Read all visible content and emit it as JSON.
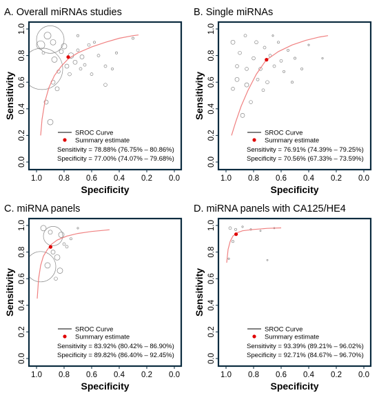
{
  "colors": {
    "frame": "#0b2b3f",
    "curve": "#f08080",
    "summary": "#e00000",
    "circle": "#888888"
  },
  "chart_data": [
    {
      "type": "scatter",
      "title": "A. Overall miRNAs studies",
      "xlabel": "Specificity",
      "ylabel": "Sensitivity",
      "xlim": [
        1.0,
        0.0
      ],
      "ylim": [
        0.0,
        1.0
      ],
      "x_ticks": [
        "1.0",
        "0.8",
        "0.6",
        "0.4",
        "0.2",
        "0.0"
      ],
      "y_ticks": [
        "0.0",
        "0.2",
        "0.4",
        "0.6",
        "0.8",
        "1.0"
      ],
      "legend": {
        "curve": "SROC Curve",
        "summary": "Summary estimate",
        "sensitivity": "Sensitivity = 78.88% (76.75% – 80.86%)",
        "specificity": "Specificity = 77.00% (74.07% – 79.68%)"
      },
      "summary": {
        "x": 0.77,
        "y": 0.789
      },
      "sroc": [
        [
          0.97,
          0.2
        ],
        [
          0.96,
          0.32
        ],
        [
          0.94,
          0.45
        ],
        [
          0.91,
          0.56
        ],
        [
          0.87,
          0.65
        ],
        [
          0.82,
          0.72
        ],
        [
          0.77,
          0.775
        ],
        [
          0.7,
          0.82
        ],
        [
          0.6,
          0.865
        ],
        [
          0.5,
          0.9
        ],
        [
          0.4,
          0.93
        ],
        [
          0.3,
          0.95
        ],
        [
          0.26,
          0.955
        ]
      ],
      "studies": [
        [
          0.9,
          0.92,
          0.1
        ],
        [
          0.96,
          0.7,
          0.15
        ],
        [
          0.97,
          0.88,
          0.03
        ],
        [
          0.92,
          0.95,
          0.025
        ],
        [
          0.88,
          0.9,
          0.02
        ],
        [
          0.82,
          0.83,
          0.015
        ],
        [
          0.8,
          0.87,
          0.02
        ],
        [
          0.78,
          0.72,
          0.015
        ],
        [
          0.75,
          0.8,
          0.02
        ],
        [
          0.72,
          0.75,
          0.015
        ],
        [
          0.7,
          0.84,
          0.01
        ],
        [
          0.67,
          0.79,
          0.015
        ],
        [
          0.65,
          0.73,
          0.01
        ],
        [
          0.62,
          0.88,
          0.01
        ],
        [
          0.6,
          0.66,
          0.01
        ],
        [
          0.55,
          0.8,
          0.01
        ],
        [
          0.5,
          0.72,
          0.01
        ],
        [
          0.5,
          0.58,
          0.012
        ],
        [
          0.45,
          0.7,
          0.008
        ],
        [
          0.42,
          0.82,
          0.008
        ],
        [
          0.9,
          0.3,
          0.02
        ],
        [
          0.85,
          0.55,
          0.015
        ],
        [
          0.93,
          0.45,
          0.015
        ],
        [
          0.88,
          0.6,
          0.015
        ],
        [
          0.84,
          0.68,
          0.012
        ],
        [
          0.7,
          0.95,
          0.008
        ],
        [
          0.76,
          0.66,
          0.012
        ],
        [
          0.68,
          0.7,
          0.01
        ],
        [
          0.58,
          0.9,
          0.008
        ],
        [
          0.3,
          0.93,
          0.008
        ],
        [
          0.95,
          0.82,
          0.01
        ],
        [
          0.87,
          0.77,
          0.02
        ]
      ]
    },
    {
      "type": "scatter",
      "title": "B. Single miRNAs",
      "xlabel": "Specificity",
      "ylabel": "Sensitivity",
      "xlim": [
        1.0,
        0.0
      ],
      "ylim": [
        0.0,
        1.0
      ],
      "x_ticks": [
        "1.0",
        "0.8",
        "0.6",
        "0.4",
        "0.2",
        "0.0"
      ],
      "y_ticks": [
        "0.0",
        "0.2",
        "0.4",
        "0.6",
        "0.8",
        "1.0"
      ],
      "legend": {
        "curve": "SROC Curve",
        "summary": "Summary estimate",
        "sensitivity": "Sensitivity = 76.91% (74.39% – 79.25%)",
        "specificity": "Specificity = 70.56% (67.33% – 73.59%)"
      },
      "summary": {
        "x": 0.706,
        "y": 0.769
      },
      "sroc": [
        [
          0.96,
          0.2
        ],
        [
          0.93,
          0.3
        ],
        [
          0.89,
          0.42
        ],
        [
          0.84,
          0.54
        ],
        [
          0.78,
          0.66
        ],
        [
          0.71,
          0.765
        ],
        [
          0.62,
          0.83
        ],
        [
          0.52,
          0.88
        ],
        [
          0.42,
          0.915
        ],
        [
          0.32,
          0.94
        ],
        [
          0.26,
          0.95
        ]
      ],
      "studies": [
        [
          0.95,
          0.9,
          0.015
        ],
        [
          0.92,
          0.62,
          0.015
        ],
        [
          0.9,
          0.82,
          0.012
        ],
        [
          0.86,
          0.95,
          0.01
        ],
        [
          0.85,
          0.58,
          0.015
        ],
        [
          0.8,
          0.78,
          0.012
        ],
        [
          0.78,
          0.9,
          0.012
        ],
        [
          0.75,
          0.7,
          0.012
        ],
        [
          0.72,
          0.86,
          0.01
        ],
        [
          0.7,
          0.6,
          0.012
        ],
        [
          0.68,
          0.8,
          0.01
        ],
        [
          0.65,
          0.72,
          0.01
        ],
        [
          0.62,
          0.9,
          0.008
        ],
        [
          0.6,
          0.76,
          0.01
        ],
        [
          0.58,
          0.68,
          0.008
        ],
        [
          0.55,
          0.84,
          0.008
        ],
        [
          0.52,
          0.6,
          0.008
        ],
        [
          0.5,
          0.78,
          0.008
        ],
        [
          0.45,
          0.7,
          0.008
        ],
        [
          0.4,
          0.88,
          0.006
        ],
        [
          0.88,
          0.35,
          0.015
        ],
        [
          0.82,
          0.45,
          0.012
        ],
        [
          0.92,
          0.72,
          0.012
        ],
        [
          0.77,
          0.62,
          0.01
        ],
        [
          0.66,
          0.95,
          0.006
        ],
        [
          0.85,
          0.7,
          0.012
        ],
        [
          0.73,
          0.54,
          0.01
        ],
        [
          0.95,
          0.55,
          0.012
        ],
        [
          0.3,
          0.78,
          0.006
        ]
      ]
    },
    {
      "type": "scatter",
      "title": "C. miRNA panels",
      "xlabel": "Specificity",
      "ylabel": "Sensitivity",
      "xlim": [
        1.0,
        0.0
      ],
      "ylim": [
        0.0,
        1.0
      ],
      "x_ticks": [
        "1.0",
        "0.8",
        "0.6",
        "0.4",
        "0.2",
        "0.0"
      ],
      "y_ticks": [
        "0.0",
        "0.2",
        "0.4",
        "0.6",
        "0.8",
        "1.0"
      ],
      "legend": {
        "curve": "SROC Curve",
        "summary": "Summary estimate",
        "sensitivity": "Sensitivity = 83.92% (80.42% – 86.90%)",
        "specificity": "Specificity = 89.82% (86.40% – 92.45%)"
      },
      "summary": {
        "x": 0.898,
        "y": 0.839
      },
      "sroc": [
        [
          0.995,
          0.45
        ],
        [
          0.985,
          0.6
        ],
        [
          0.97,
          0.7
        ],
        [
          0.95,
          0.77
        ],
        [
          0.92,
          0.82
        ],
        [
          0.89,
          0.86
        ],
        [
          0.85,
          0.89
        ],
        [
          0.78,
          0.92
        ],
        [
          0.7,
          0.94
        ],
        [
          0.6,
          0.955
        ],
        [
          0.5,
          0.965
        ],
        [
          0.47,
          0.968
        ]
      ],
      "studies": [
        [
          0.88,
          0.92,
          0.07
        ],
        [
          0.97,
          0.69,
          0.11
        ],
        [
          0.95,
          0.98,
          0.02
        ],
        [
          0.9,
          0.95,
          0.015
        ],
        [
          0.82,
          0.93,
          0.02
        ],
        [
          0.85,
          0.76,
          0.02
        ],
        [
          0.88,
          0.8,
          0.015
        ],
        [
          0.92,
          0.7,
          0.02
        ],
        [
          0.83,
          0.66,
          0.02
        ],
        [
          0.8,
          0.86,
          0.01
        ],
        [
          0.75,
          0.9,
          0.008
        ],
        [
          0.7,
          0.98,
          0.006
        ],
        [
          0.78,
          0.84,
          0.01
        ],
        [
          0.86,
          0.6,
          0.012
        ]
      ]
    },
    {
      "type": "scatter",
      "title": "D. miRNA panels with CA125/HE4",
      "xlabel": "Specificity",
      "ylabel": "Sensitivity",
      "xlim": [
        1.0,
        0.0
      ],
      "ylim": [
        0.0,
        1.0
      ],
      "x_ticks": [
        "1.0",
        "0.8",
        "0.6",
        "0.4",
        "0.2",
        "0.0"
      ],
      "y_ticks": [
        "0.0",
        "0.2",
        "0.4",
        "0.6",
        "0.8",
        "1.0"
      ],
      "legend": {
        "curve": "SROC Curve",
        "summary": "Summary estimate",
        "sensitivity": "Sensitivity = 93.39% (89.21% – 96.02%)",
        "specificity": "Specificity = 92.71% (84.67% – 96.70%)"
      },
      "summary": {
        "x": 0.927,
        "y": 0.934
      },
      "sroc": [
        [
          0.995,
          0.72
        ],
        [
          0.985,
          0.82
        ],
        [
          0.97,
          0.88
        ],
        [
          0.95,
          0.92
        ],
        [
          0.92,
          0.945
        ],
        [
          0.88,
          0.96
        ],
        [
          0.8,
          0.97
        ],
        [
          0.7,
          0.978
        ],
        [
          0.6,
          0.982
        ]
      ],
      "studies": [
        [
          0.97,
          0.98,
          0.01
        ],
        [
          0.93,
          0.97,
          0.008
        ],
        [
          0.88,
          0.99,
          0.006
        ],
        [
          0.82,
          0.97,
          0.006
        ],
        [
          0.75,
          0.96,
          0.005
        ],
        [
          0.95,
          0.88,
          0.008
        ],
        [
          0.98,
          0.75,
          0.006
        ],
        [
          0.65,
          0.98,
          0.005
        ],
        [
          0.7,
          0.74,
          0.005
        ]
      ]
    }
  ]
}
